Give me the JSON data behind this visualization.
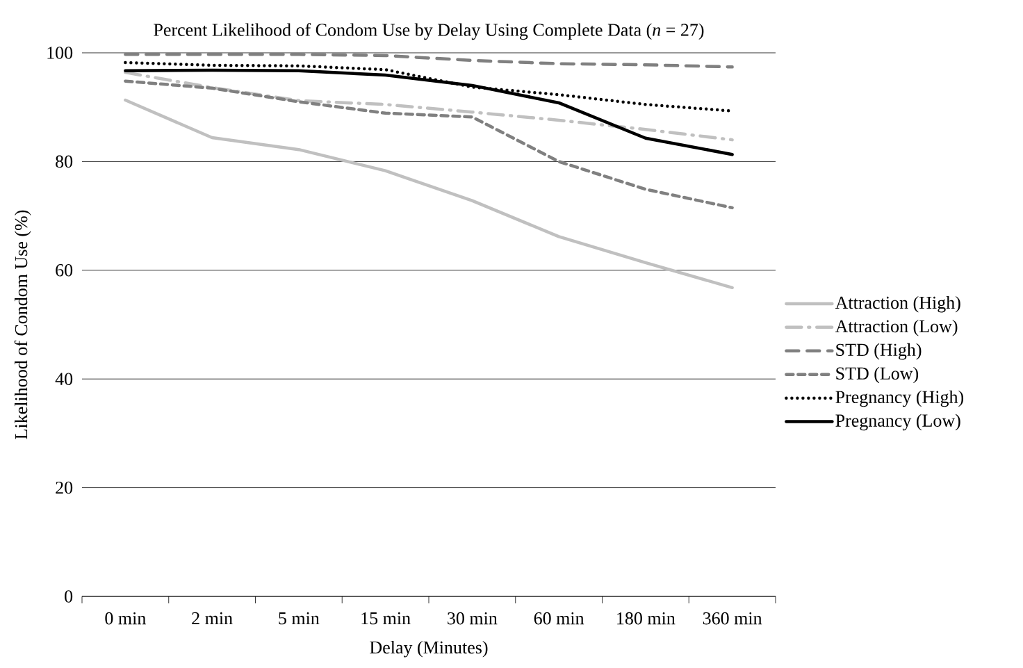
{
  "chart_data": {
    "type": "line",
    "title": "Percent Likelihood of Condom Use by Delay Using Complete Data (*n* = 27)",
    "xlabel": "Delay (Minutes)",
    "ylabel": "Likelihood of Condom Use (%)",
    "categories": [
      "0 min",
      "2 min",
      "5 min",
      "15 min",
      "30 min",
      "60 min",
      "180 min",
      "360 min"
    ],
    "ylim": [
      0,
      100
    ],
    "yticks": [
      0,
      20,
      40,
      60,
      80,
      100
    ],
    "grid": "y",
    "legend": "right",
    "marker": "none",
    "series": [
      {
        "name": "Attraction (High)",
        "color": "#c0c0c0",
        "line_style": "solid",
        "values": [
          91.3,
          84.4,
          82.2,
          78.3,
          72.8,
          66.2,
          61.4,
          56.8
        ]
      },
      {
        "name": "Attraction (Low)",
        "color": "#c0c0c0",
        "line_style": "dashed",
        "values": [
          96.4,
          93.6,
          91.2,
          90.5,
          89.1,
          87.6,
          85.9,
          84.0
        ]
      },
      {
        "name": "STD (High)",
        "color": "#808080",
        "line_style": "dashed",
        "values": [
          99.7,
          99.7,
          99.7,
          99.5,
          98.6,
          98.0,
          97.8,
          97.4
        ]
      },
      {
        "name": "STD (Low)",
        "color": "#808080",
        "line_style": "dashed",
        "values": [
          94.8,
          93.5,
          91.0,
          88.9,
          88.2,
          80.0,
          74.9,
          71.5
        ]
      },
      {
        "name": "Pregnancy (High)",
        "color": "#000000",
        "line_style": "dotted",
        "values": [
          98.2,
          97.7,
          97.6,
          96.9,
          93.7,
          92.3,
          90.5,
          89.3
        ]
      },
      {
        "name": "Pregnancy (Low)",
        "color": "#000000",
        "line_style": "solid",
        "values": [
          96.7,
          96.8,
          96.7,
          95.9,
          94.0,
          90.8,
          84.3,
          81.3
        ]
      }
    ]
  }
}
